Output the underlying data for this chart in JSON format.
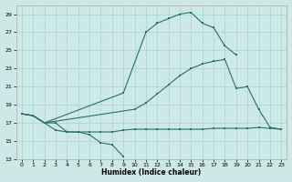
{
  "xlabel": "Humidex (Indice chaleur)",
  "background_color": "#cce9e8",
  "grid_color": "#aad4d2",
  "line_color": "#2a6e68",
  "xlim": [
    -0.5,
    23.5
  ],
  "ylim": [
    13,
    30
  ],
  "yticks": [
    13,
    15,
    17,
    19,
    21,
    23,
    25,
    27,
    29
  ],
  "xticks": [
    0,
    1,
    2,
    3,
    4,
    5,
    6,
    7,
    8,
    9,
    10,
    11,
    12,
    13,
    14,
    15,
    16,
    17,
    18,
    19,
    20,
    21,
    22,
    23
  ],
  "line1_x": [
    0,
    1,
    2,
    3,
    4,
    5,
    6,
    7,
    8,
    9
  ],
  "line1_y": [
    18.0,
    17.8,
    17.0,
    17.0,
    16.0,
    16.0,
    15.7,
    14.8,
    14.6,
    13.3
  ],
  "line2_x": [
    0,
    1,
    2,
    3,
    4,
    5,
    6,
    7,
    8,
    9,
    10,
    11,
    12,
    13,
    14,
    15,
    16,
    17,
    18,
    19,
    20,
    21,
    22,
    23
  ],
  "line2_y": [
    18.0,
    17.8,
    17.0,
    16.2,
    16.0,
    16.0,
    16.0,
    16.0,
    16.0,
    16.2,
    16.3,
    16.3,
    16.3,
    16.3,
    16.3,
    16.3,
    16.3,
    16.4,
    16.4,
    16.4,
    16.4,
    16.5,
    16.4,
    16.3
  ],
  "line3_x": [
    0,
    1,
    2,
    9,
    11,
    12,
    13,
    14,
    15,
    16,
    17,
    18,
    19
  ],
  "line3_y": [
    18.0,
    17.8,
    17.0,
    20.3,
    27.0,
    28.0,
    28.5,
    29.0,
    29.2,
    28.0,
    27.5,
    25.5,
    24.5
  ],
  "line4_x": [
    0,
    1,
    2,
    10,
    11,
    12,
    13,
    14,
    15,
    16,
    17,
    18,
    19,
    20,
    21,
    22,
    23
  ],
  "line4_y": [
    18.0,
    17.8,
    17.0,
    18.5,
    19.2,
    20.2,
    21.2,
    22.2,
    23.0,
    23.5,
    23.8,
    24.0,
    20.8,
    21.0,
    18.5,
    16.5,
    16.3
  ]
}
